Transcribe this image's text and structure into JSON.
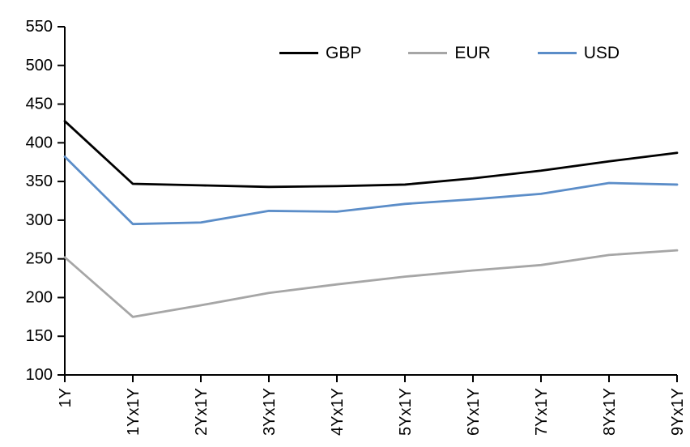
{
  "chart_data": {
    "type": "line",
    "title": "",
    "xlabel": "",
    "ylabel": "",
    "categories": [
      "1Y",
      "1Yx1Y",
      "2Yx1Y",
      "3Yx1Y",
      "4Yx1Y",
      "5Yx1Y",
      "6Yx1Y",
      "7Yx1Y",
      "8Yx1Y",
      "9Yx1Y"
    ],
    "series": [
      {
        "name": "GBP",
        "color": "#000000",
        "values": [
          428,
          347,
          345,
          343,
          344,
          346,
          354,
          364,
          376,
          387
        ]
      },
      {
        "name": "EUR",
        "color": "#a6a6a6",
        "values": [
          252,
          175,
          190,
          206,
          217,
          227,
          235,
          242,
          255,
          261
        ]
      },
      {
        "name": "USD",
        "color": "#5b8dc8",
        "values": [
          382,
          295,
          297,
          312,
          311,
          321,
          327,
          334,
          348,
          346
        ]
      }
    ],
    "ylim": [
      100,
      550
    ],
    "ytick_step": 50,
    "grid": false,
    "legend_position": "top-inside",
    "axis_color": "#000000"
  }
}
